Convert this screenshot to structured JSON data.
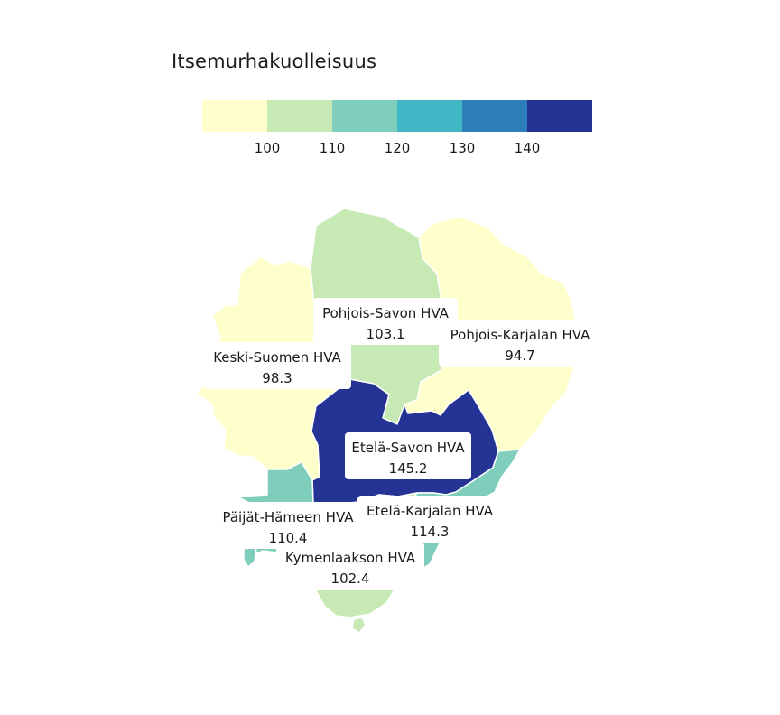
{
  "legend": {
    "title": "Itsemurhakuolleisuus",
    "bins": [
      {
        "min": null,
        "max": 100,
        "color": "#ffffcc"
      },
      {
        "min": 100,
        "max": 110,
        "color": "#c7e9b4"
      },
      {
        "min": 110,
        "max": 120,
        "color": "#7fcdbb"
      },
      {
        "min": 120,
        "max": 130,
        "color": "#41b6c4"
      },
      {
        "min": 130,
        "max": 140,
        "color": "#2c7fb8"
      },
      {
        "min": 140,
        "max": null,
        "color": "#253494"
      }
    ],
    "ticks": [
      "100",
      "110",
      "120",
      "130",
      "140"
    ]
  },
  "regions": [
    {
      "id": "keski-suomi",
      "name": "Keski-Suomen HVA",
      "value": "98.3",
      "color": "#ffffcc"
    },
    {
      "id": "pohjois-savo",
      "name": "Pohjois-Savon HVA",
      "value": "103.1",
      "color": "#c7e9b4"
    },
    {
      "id": "pohjois-karjala",
      "name": "Pohjois-Karjalan HVA",
      "value": "94.7",
      "color": "#ffffcc"
    },
    {
      "id": "etela-savo",
      "name": "Etelä-Savon HVA",
      "value": "145.2",
      "color": "#253494"
    },
    {
      "id": "etela-karjala",
      "name": "Etelä-Karjalan HVA",
      "value": "114.3",
      "color": "#7fcdbb"
    },
    {
      "id": "paijat-hame",
      "name": "Päijät-Hämeen HVA",
      "value": "110.4",
      "color": "#7fcdbb"
    },
    {
      "id": "kymenlaakso",
      "name": "Kymenlaakson HVA",
      "value": "102.4",
      "color": "#c7e9b4"
    }
  ]
}
